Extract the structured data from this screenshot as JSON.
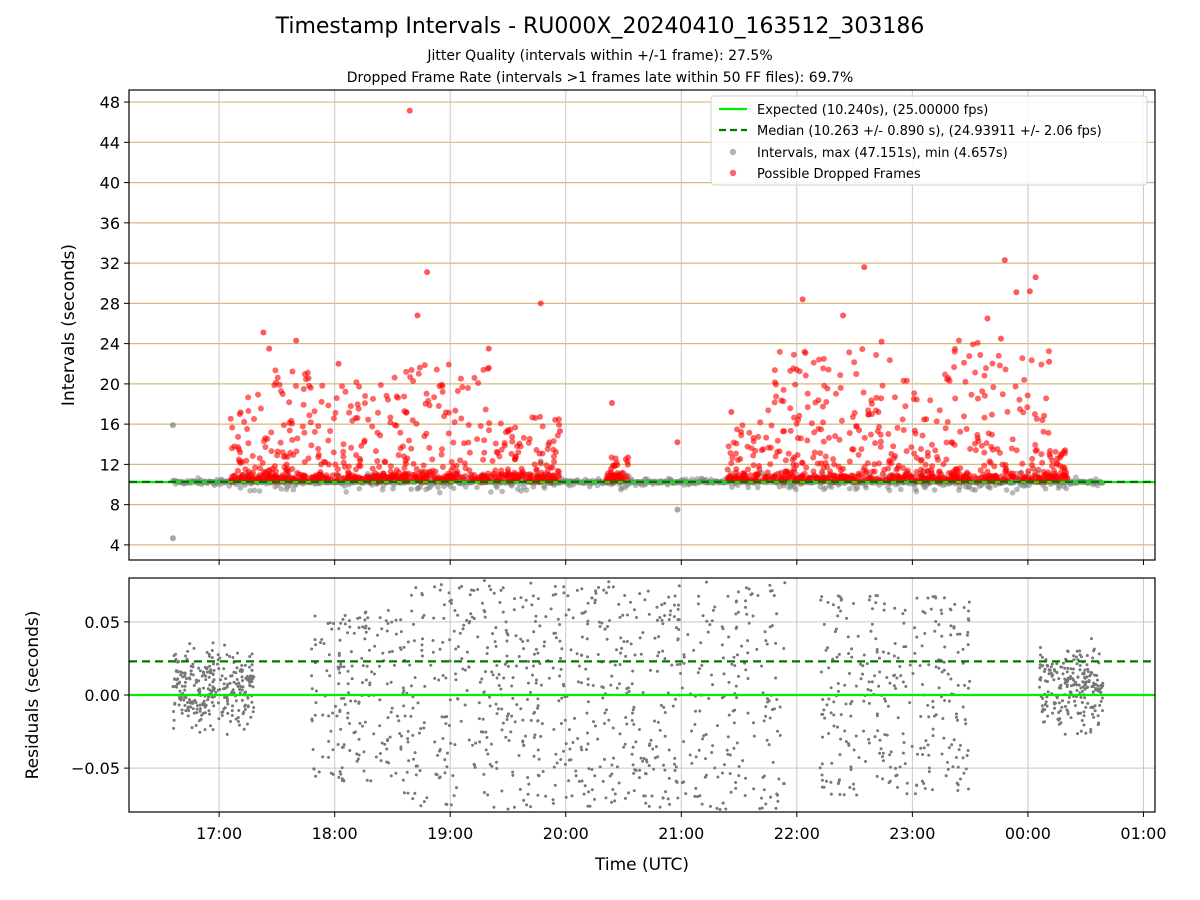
{
  "chart_data": [
    {
      "type": "scatter",
      "title": "Timestamp Intervals - RU000X_20240410_163512_303186",
      "subtitles": [
        "Jitter Quality (intervals within +/-1 frame): 27.5%",
        "Dropped Frame Rate (intervals >1 frames late within 50 FF files): 69.7%"
      ],
      "ylabel": "Intervals (seconds)",
      "xlabel": "",
      "ylim": [
        2.5,
        49.2
      ],
      "yticks": [
        4,
        8,
        12,
        16,
        20,
        24,
        28,
        32,
        36,
        40,
        44,
        48
      ],
      "grid": "on",
      "legend_placement": "top-right",
      "legend": [
        "Expected (10.240s), (25.00000 fps)",
        "Median (10.263 +/- 0.890 s), (24.93911 +/- 2.06 fps)",
        "Intervals, max (47.151s), min (4.657s)",
        "Possible Dropped Frames"
      ],
      "reference_lines": [
        {
          "name": "Expected",
          "y": 10.24,
          "color": "#00ee00",
          "style": "solid"
        },
        {
          "name": "Median",
          "y": 10.263,
          "color": "#007700",
          "style": "dashed"
        }
      ],
      "time_range_hours": [
        16.6,
        24.65
      ],
      "series": [
        {
          "name": "Intervals",
          "color": "#808080",
          "max": 47.151,
          "min": 4.657,
          "notable_points": [
            {
              "x": "16:35",
              "y": 15.9
            },
            {
              "x": "16:35",
              "y": 4.66
            },
            {
              "x": "19:47",
              "y": 12.3
            },
            {
              "x": "20:58",
              "y": 7.5
            }
          ]
        },
        {
          "name": "Possible Dropped Frames",
          "color": "#ff0000",
          "notable_points": [
            {
              "x": "18:39",
              "y": 47.15
            },
            {
              "x": "18:48",
              "y": 31.1
            },
            {
              "x": "18:43",
              "y": 26.8
            },
            {
              "x": "19:47",
              "y": 28.0
            },
            {
              "x": "19:57",
              "y": 15.3
            },
            {
              "x": "19:20",
              "y": 23.5
            },
            {
              "x": "17:23",
              "y": 25.1
            },
            {
              "x": "17:26",
              "y": 23.5
            },
            {
              "x": "17:40",
              "y": 24.3
            },
            {
              "x": "18:02",
              "y": 22.0
            },
            {
              "x": "20:24",
              "y": 18.1
            },
            {
              "x": "20:58",
              "y": 14.2
            },
            {
              "x": "21:26",
              "y": 17.2
            },
            {
              "x": "22:03",
              "y": 28.4
            },
            {
              "x": "22:24",
              "y": 26.8
            },
            {
              "x": "22:35",
              "y": 31.6
            },
            {
              "x": "22:44",
              "y": 24.2
            },
            {
              "x": "23:39",
              "y": 26.5
            },
            {
              "x": "23:48",
              "y": 32.3
            },
            {
              "x": "23:54",
              "y": 29.1
            },
            {
              "x": "00:01",
              "y": 29.2
            },
            {
              "x": "00:04",
              "y": 30.6
            },
            {
              "x": "00:11",
              "y": 22.2
            },
            {
              "x": "23:46",
              "y": 24.5
            }
          ]
        }
      ],
      "clusters": [
        {
          "from": 17.1,
          "to": 17.45,
          "scale": 2.0
        },
        {
          "from": 17.45,
          "to": 18.55,
          "scale": 2.5
        },
        {
          "from": 18.55,
          "to": 19.35,
          "scale": 2.7
        },
        {
          "from": 19.35,
          "to": 19.95,
          "scale": 1.4
        },
        {
          "from": 20.35,
          "to": 20.55,
          "scale": 0.6
        },
        {
          "from": 21.4,
          "to": 21.75,
          "scale": 1.3
        },
        {
          "from": 21.75,
          "to": 22.85,
          "scale": 3.0
        },
        {
          "from": 22.85,
          "to": 23.35,
          "scale": 2.4
        },
        {
          "from": 23.35,
          "to": 24.2,
          "scale": 3.2
        },
        {
          "from": 24.2,
          "to": 24.35,
          "scale": 0.6
        }
      ]
    },
    {
      "type": "scatter",
      "title": "",
      "xlabel": "Time (UTC)",
      "ylabel": "Residuals (seconds)",
      "ylim": [
        -0.08,
        0.08
      ],
      "ytick_labels": [
        "0.05",
        "0.00",
        "−0.05"
      ],
      "yticks": [
        0.05,
        0,
        -0.05
      ],
      "xtick_labels": [
        "17:00",
        "18:00",
        "19:00",
        "20:00",
        "21:00",
        "22:00",
        "23:00",
        "00:00",
        "01:00"
      ],
      "xticks_hours": [
        17,
        18,
        19,
        20,
        21,
        22,
        23,
        24,
        25
      ],
      "xlim_hours": [
        16.22,
        25.1
      ],
      "grid": "on",
      "reference_lines": [
        {
          "name": "Expected",
          "y": 0.0,
          "color": "#00ee00",
          "style": "solid"
        },
        {
          "name": "Median",
          "y": 0.023,
          "color": "#007700",
          "style": "dashed"
        }
      ],
      "series": [
        {
          "name": "Residuals",
          "color": "#777777",
          "clusters": [
            {
              "from": 16.6,
              "to": 17.3,
              "spread": 0.045
            },
            {
              "from": 17.8,
              "to": 18.6,
              "spread": 0.06
            },
            {
              "from": 18.6,
              "to": 21.9,
              "spread": 0.08
            },
            {
              "from": 22.2,
              "to": 23.5,
              "spread": 0.07
            },
            {
              "from": 24.1,
              "to": 24.65,
              "spread": 0.045
            }
          ]
        }
      ]
    }
  ]
}
